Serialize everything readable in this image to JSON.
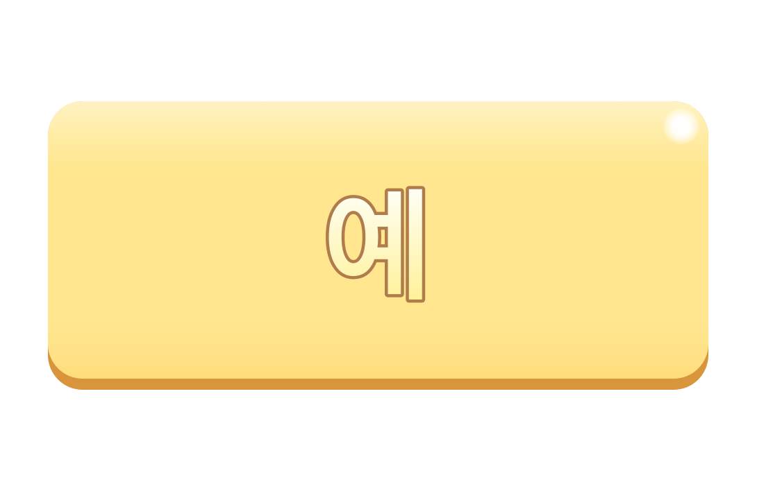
{
  "button": {
    "label": "예"
  },
  "colors": {
    "face_top": "#fff3c4",
    "face_mid": "#ffe68f",
    "face_bottom": "#ffdc7a",
    "base": "#d9953b",
    "label_stroke": "#b07c4c",
    "label_fill_top": "#ffffff",
    "label_fill_bottom": "#fff08a",
    "background": "#ffffff"
  }
}
